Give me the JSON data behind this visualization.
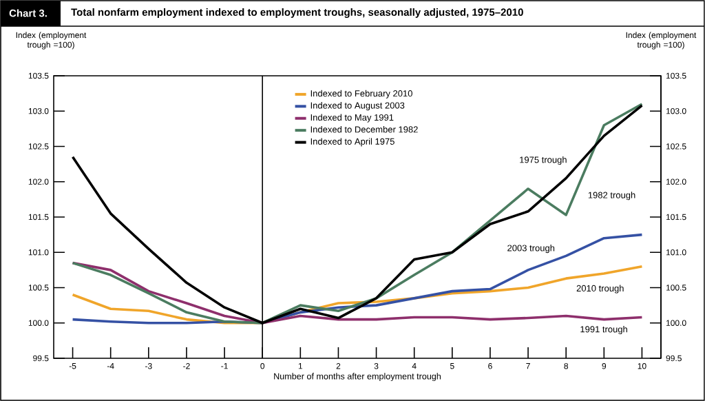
{
  "chart_data": {
    "type": "line",
    "title": "Total nonfarm employment indexed to employment troughs, seasonally adjusted, 1975–2010",
    "xlabel": "Number of months after employment trough",
    "ylabel": "Index (employment trough =100)",
    "y2label": "Index (employment trough =100)",
    "x": [
      -5,
      -4,
      -3,
      -2,
      -1,
      0,
      1,
      2,
      3,
      4,
      5,
      6,
      7,
      8,
      9,
      10
    ],
    "series": [
      {
        "name": "Indexed to February 2010",
        "color": "#f0a52a",
        "values": [
          100.4,
          100.2,
          100.17,
          100.05,
          100.0,
          100.0,
          100.15,
          100.28,
          100.3,
          100.35,
          100.42,
          100.45,
          100.5,
          100.63,
          100.7,
          100.8
        ]
      },
      {
        "name": "Indexed to August 2003",
        "color": "#3551a4",
        "values": [
          100.05,
          100.02,
          100.0,
          100.0,
          100.02,
          100.0,
          100.15,
          100.22,
          100.25,
          100.35,
          100.45,
          100.48,
          100.75,
          100.95,
          101.2,
          101.25
        ]
      },
      {
        "name": "Indexed to May 1991",
        "color": "#8e2f6c",
        "values": [
          100.85,
          100.75,
          100.45,
          100.28,
          100.1,
          100.0,
          100.1,
          100.05,
          100.05,
          100.08,
          100.08,
          100.05,
          100.07,
          100.1,
          100.05,
          100.08
        ]
      },
      {
        "name": "Indexed to December 1982",
        "color": "#4b7c60",
        "values": [
          100.85,
          100.68,
          100.42,
          100.15,
          100.02,
          100.0,
          100.25,
          100.17,
          100.35,
          100.68,
          101.0,
          101.45,
          101.9,
          101.53,
          102.8,
          103.1
        ]
      },
      {
        "name": "Indexed to April 1975",
        "color": "#000000",
        "values": [
          102.35,
          101.55,
          101.05,
          100.57,
          100.22,
          100.0,
          100.2,
          100.07,
          100.35,
          100.9,
          101.0,
          101.4,
          101.58,
          102.05,
          102.65,
          103.08
        ]
      }
    ],
    "xlim": [
      -5.5,
      10.5
    ],
    "ylim": [
      99.5,
      103.5
    ],
    "y2lim": [
      99.5,
      103.5
    ],
    "xticks": [
      -5,
      -4,
      -3,
      -2,
      -1,
      0,
      1,
      2,
      3,
      4,
      5,
      6,
      7,
      8,
      9,
      10
    ],
    "yticks": [
      99.5,
      {
        "value": 100,
        "label": "100.0"
      },
      100.5,
      {
        "value": 101,
        "label": "101.0"
      },
      101.5,
      {
        "value": 102,
        "label": "102.0"
      },
      102.5,
      {
        "value": 103,
        "label": "103.0"
      },
      103.5
    ],
    "y2ticks": [
      99.5,
      {
        "value": 100,
        "label": "100.0"
      },
      100.5,
      {
        "value": 101,
        "label": "101.0"
      },
      101.5,
      {
        "value": 102,
        "label": "102.0"
      },
      102.5,
      {
        "value": 103,
        "label": "103.0"
      },
      103.5
    ],
    "ref_lines": [
      {
        "axis": "x",
        "value": 0,
        "color": "#000000"
      }
    ],
    "legend": "top",
    "grid": false,
    "marker": "none",
    "line_style": "solid",
    "annotations": [
      "Chart 3.",
      "1975 trough",
      "1982 trough",
      "2003 trough",
      "2010 trough",
      "1991 trough"
    ]
  }
}
